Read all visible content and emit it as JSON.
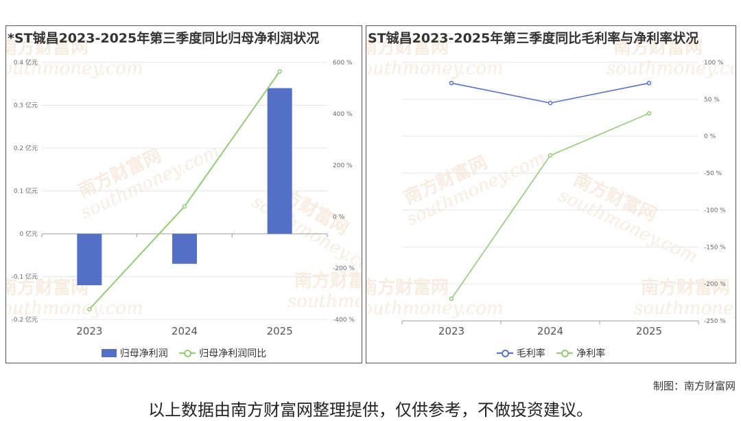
{
  "watermark": {
    "brand_cn": "南方财富网",
    "brand_en": "southmoney.com"
  },
  "credit": "制图：南方财富网",
  "footer_note": "以上数据由南方财富网整理提供，仅供参考，不做投资建议。",
  "colors": {
    "bar": "#5470c6",
    "line_green": "#91cc75",
    "line_blue": "#5470c6"
  },
  "chart_data": [
    {
      "type": "bar",
      "title": "*ST铖昌2023-2025年第三季度同比归母净利润状况",
      "categories": [
        "2023",
        "2024",
        "2025"
      ],
      "y_left": {
        "range": [
          -0.2,
          0.4
        ],
        "ticks": [
          -0.2,
          -0.1,
          0,
          0.1,
          0.2,
          0.3,
          0.4
        ],
        "tick_labels": [
          "-0.2 亿元",
          "-0.1 亿元",
          "0 亿元",
          "0.1 亿元",
          "0.2 亿元",
          "0.3 亿元",
          "0.4 亿元"
        ]
      },
      "y_right": {
        "range": [
          -400,
          600
        ],
        "ticks": [
          -400,
          -200,
          0,
          200,
          400,
          600
        ],
        "tick_labels": [
          "-400 %",
          "-200 %",
          "0 %",
          "200 %",
          "400 %",
          "600 %"
        ]
      },
      "series": [
        {
          "name": "归母净利润",
          "kind": "bar",
          "axis": "left",
          "color": "#5470c6",
          "values": [
            -0.12,
            -0.07,
            0.34
          ]
        },
        {
          "name": "归母净利润同比",
          "kind": "line",
          "axis": "right",
          "color": "#91cc75",
          "values": [
            -360,
            40,
            565
          ]
        }
      ],
      "legend": "bottom-center",
      "grid": true
    },
    {
      "type": "line",
      "title": "ST铖昌2023-2025年第三季度同比毛利率与净利率状况",
      "categories": [
        "2023",
        "2024",
        "2025"
      ],
      "y_right": {
        "range": [
          -250,
          100
        ],
        "ticks": [
          -250,
          -200,
          -150,
          -100,
          -50,
          0,
          50,
          100
        ],
        "tick_labels": [
          "-250 %",
          "-200 %",
          "-150 %",
          "-100 %",
          "-50 %",
          "0 %",
          "50 %",
          "100 %"
        ]
      },
      "series": [
        {
          "name": "毛利率",
          "kind": "line",
          "axis": "right",
          "color": "#5470c6",
          "values": [
            72,
            45,
            72
          ]
        },
        {
          "name": "净利率",
          "kind": "line",
          "axis": "right",
          "color": "#91cc75",
          "values": [
            -220,
            -26,
            31
          ]
        }
      ],
      "legend": "bottom-center",
      "grid": true
    }
  ]
}
